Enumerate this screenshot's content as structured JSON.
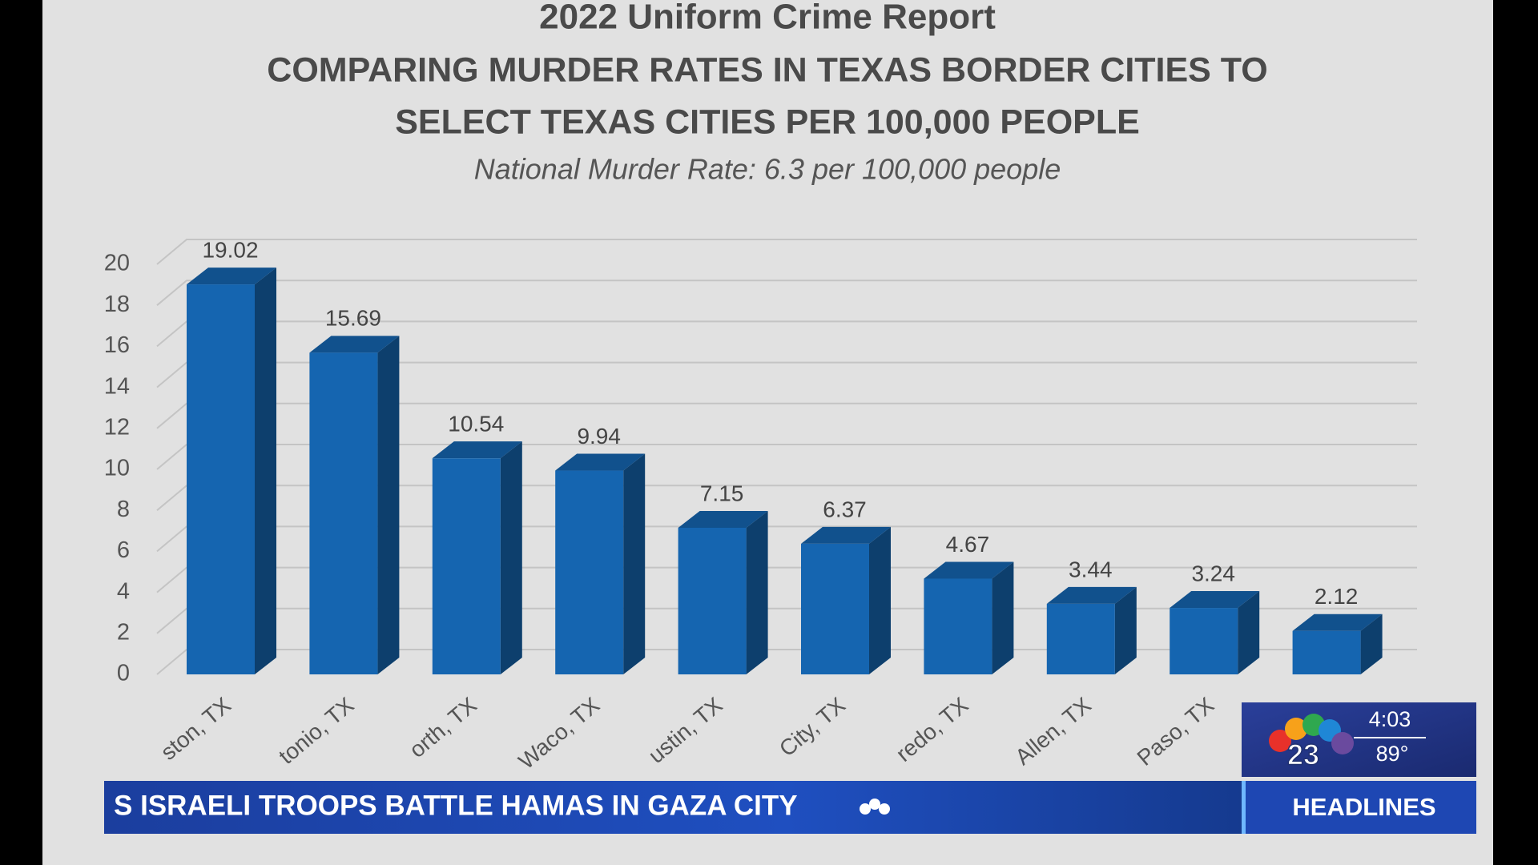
{
  "chart_data": {
    "type": "bar3d",
    "title": "2022 Uniform Crime Report",
    "subtitle": [
      "COMPARING MURDER RATES IN TEXAS BORDER CITIES TO",
      "SELECT TEXAS CITIES PER 100,000 PEOPLE"
    ],
    "note": "National Murder Rate: 6.3 per 100,000 people",
    "categories": [
      "ston, TX",
      "tonio, TX",
      "orth, TX",
      "Waco, TX",
      "ustin, TX",
      "City, TX",
      "redo, TX",
      "Allen, TX",
      "Paso, TX",
      null
    ],
    "values": [
      19.02,
      15.69,
      10.54,
      9.94,
      7.15,
      6.37,
      4.67,
      3.44,
      3.24,
      2.12
    ],
    "color": "#1565b0",
    "ylim": [
      0,
      20
    ],
    "yticks": [
      0,
      2,
      4,
      6,
      8,
      10,
      12,
      14,
      16,
      18,
      20
    ],
    "grid": true
  },
  "ticker": {
    "headline": "S ISRAELI TROOPS BATTLE HAMAS IN GAZA CITY",
    "section": "HEADLINES",
    "time": "4:03",
    "temperature": "89°",
    "channel": "23"
  }
}
